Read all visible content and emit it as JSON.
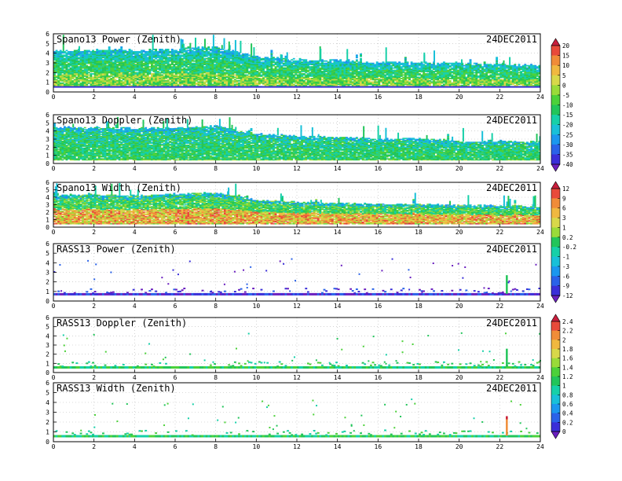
{
  "chart_data": [
    {
      "type": "heatmap",
      "title": "Spano13 Power (Zenith)",
      "date": "24DEC2011",
      "xlim": [
        0,
        24
      ],
      "ylim": [
        0,
        6
      ],
      "xticks": [
        "0",
        "2",
        "4",
        "6",
        "8",
        "10",
        "12",
        "14",
        "16",
        "18",
        "20",
        "22",
        "24"
      ],
      "yticks": [
        "0",
        "1",
        "2",
        "3",
        "4",
        "5",
        "6"
      ],
      "x": [
        0,
        2,
        4,
        6,
        8,
        10,
        12,
        14,
        16,
        18,
        20,
        22,
        24
      ],
      "top_km": [
        4.2,
        4.3,
        4.2,
        4.4,
        4.6,
        3.6,
        3.3,
        3.2,
        3.0,
        3.0,
        2.9,
        2.8,
        2.7
      ],
      "bottom_km": [
        0.5,
        0.5,
        0.5,
        0.5,
        0.5,
        0.5,
        0.5,
        0.5,
        0.5,
        0.5,
        0.5,
        0.5,
        0.5
      ],
      "colorbar": {
        "labels": [
          "20",
          "15",
          "10",
          "5",
          "0",
          "-5",
          "-10",
          "-15",
          "-20",
          "-25",
          "-30",
          "-35",
          "-40"
        ]
      }
    },
    {
      "type": "heatmap",
      "title": "Spano13 Doppler (Zenith)",
      "date": "24DEC2011",
      "xlim": [
        0,
        24
      ],
      "ylim": [
        0,
        6
      ],
      "xticks": [
        "0",
        "2",
        "4",
        "6",
        "8",
        "10",
        "12",
        "14",
        "16",
        "18",
        "20",
        "22",
        "24"
      ],
      "yticks": [
        "0",
        "1",
        "2",
        "3",
        "4",
        "5",
        "6"
      ],
      "x": [
        0,
        2,
        4,
        6,
        8,
        10,
        12,
        14,
        16,
        18,
        20,
        22,
        24
      ],
      "top_km": [
        4.4,
        4.4,
        4.3,
        4.3,
        4.6,
        3.6,
        3.3,
        3.2,
        3.0,
        3.0,
        2.7,
        2.7,
        2.6
      ],
      "bottom_km": [
        0.4,
        0.4,
        0.4,
        0.4,
        0.4,
        0.4,
        0.4,
        0.4,
        0.4,
        0.4,
        0.4,
        0.4,
        0.4
      ]
    },
    {
      "type": "heatmap",
      "title": "Spano13 Width (Zenith)",
      "date": "24DEC2011",
      "xlim": [
        0,
        24
      ],
      "ylim": [
        0,
        6
      ],
      "xticks": [
        "0",
        "2",
        "4",
        "6",
        "8",
        "10",
        "12",
        "14",
        "16",
        "18",
        "20",
        "22",
        "24"
      ],
      "yticks": [
        "0",
        "1",
        "2",
        "3",
        "4",
        "5",
        "6"
      ],
      "x": [
        0,
        2,
        4,
        6,
        8,
        10,
        12,
        14,
        16,
        18,
        20,
        22,
        24
      ],
      "top_km": [
        4.2,
        4.3,
        4.2,
        4.4,
        4.6,
        3.6,
        3.3,
        3.2,
        3.0,
        3.0,
        2.9,
        2.8,
        2.7
      ],
      "bottom_km": [
        0.4,
        0.4,
        0.4,
        0.4,
        0.4,
        0.4,
        0.4,
        0.4,
        0.4,
        0.4,
        0.4,
        0.4,
        0.4
      ],
      "colorbar": {
        "labels": [
          "12",
          "9",
          "6",
          "3",
          "1",
          "0.2",
          "-0.2",
          "-1",
          "-3",
          "-6",
          "-9",
          "-12"
        ]
      }
    },
    {
      "type": "heatmap",
      "title": "RASS13 Power (Zenith)",
      "date": "24DEC2011",
      "xlim": [
        0,
        24
      ],
      "ylim": [
        0,
        6
      ],
      "xticks": [
        "0",
        "2",
        "4",
        "6",
        "8",
        "10",
        "12",
        "14",
        "16",
        "18",
        "20",
        "22",
        "24"
      ],
      "yticks": [
        "0",
        "1",
        "2",
        "3",
        "4",
        "5",
        "6"
      ],
      "base_km": 0.75,
      "spike": {
        "x": 22.3,
        "top_km": 2.7
      }
    },
    {
      "type": "heatmap",
      "title": "RASS13 Doppler (Zenith)",
      "date": "24DEC2011",
      "xlim": [
        0,
        24
      ],
      "ylim": [
        0,
        6
      ],
      "xticks": [
        "0",
        "2",
        "4",
        "6",
        "8",
        "10",
        "12",
        "14",
        "16",
        "18",
        "20",
        "22",
        "24"
      ],
      "yticks": [
        "0",
        "1",
        "2",
        "3",
        "4",
        "5",
        "6"
      ],
      "base_km": 0.6,
      "spike": {
        "x": 22.3,
        "top_km": 2.6
      },
      "colorbar": {
        "labels": [
          "2.4",
          "2.2",
          "2",
          "1.8",
          "1.6",
          "1.4",
          "1.2",
          "1",
          "0.8",
          "0.6",
          "0.4",
          "0.2",
          "0"
        ]
      }
    },
    {
      "type": "heatmap",
      "title": "RASS13 Width (Zenith)",
      "date": "24DEC2011",
      "xlim": [
        0,
        24
      ],
      "ylim": [
        0,
        6
      ],
      "xticks": [
        "0",
        "2",
        "4",
        "6",
        "8",
        "10",
        "12",
        "14",
        "16",
        "18",
        "20",
        "22",
        "24"
      ],
      "yticks": [
        "0",
        "1",
        "2",
        "3",
        "4",
        "5",
        "6"
      ],
      "base_km": 0.6,
      "spike": {
        "x": 22.3,
        "top_km": 2.6
      }
    }
  ],
  "colors": {
    "ramp": [
      "#6a1fbf",
      "#3a2ed8",
      "#2a62e8",
      "#1b97ee",
      "#18c0d8",
      "#16d0a8",
      "#22c55a",
      "#4cd13a",
      "#9adb3a",
      "#d8d84a",
      "#f0b840",
      "#f08c38",
      "#e84a3a",
      "#c81e3c"
    ]
  }
}
